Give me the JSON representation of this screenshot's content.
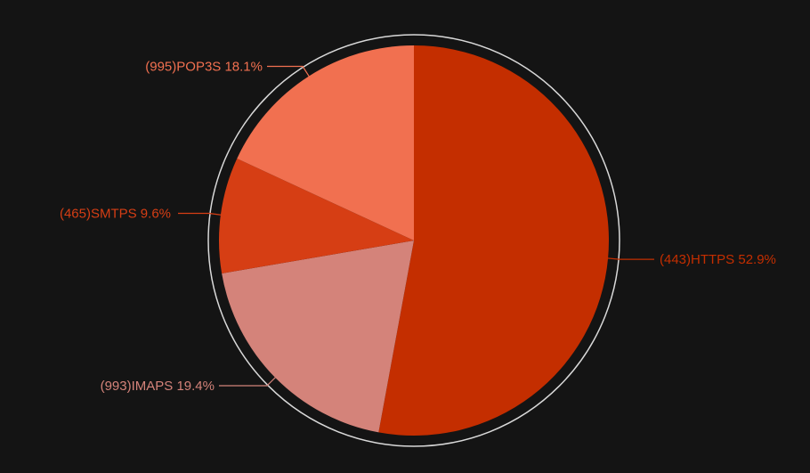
{
  "chart_data": {
    "type": "pie",
    "title": "",
    "labels": [
      "(443)HTTPS",
      "(993)IMAPS",
      "(465)SMTPS",
      "(995)POP3S"
    ],
    "values": [
      52.9,
      19.4,
      9.6,
      18.1
    ],
    "display_labels": [
      "(443)HTTPS 52.9%",
      "(993)IMAPS 19.4%",
      "(465)SMTPS 9.6%",
      "(995)POP3S 18.1%"
    ],
    "colors": [
      "#c42e00",
      "#d4837a",
      "#d63e14",
      "#f17050"
    ],
    "start_angle": "12 o'clock",
    "direction": "clockwise",
    "outer_ring": true,
    "legend": "none"
  }
}
